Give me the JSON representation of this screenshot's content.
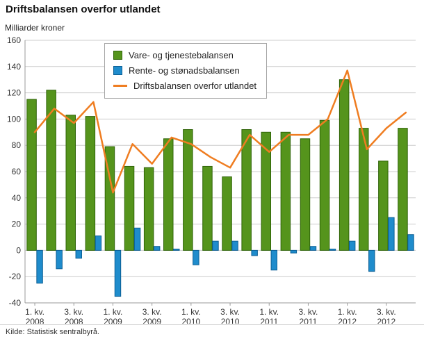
{
  "title": "Driftsbalansen overfor utlandet",
  "units_label": "Milliarder kroner",
  "footer": {
    "source": "Kilde: Statistisk sentralbyrå."
  },
  "colors": {
    "green_fill": "#55941c",
    "green_border": "#2f6407",
    "blue_fill": "#1f8ccc",
    "blue_border": "#0b5e94",
    "orange_line": "#ef7d21",
    "grid": "#cccccc",
    "axis": "#999999"
  },
  "legend": [
    {
      "label": "Vare- og tjenestebalansen",
      "type": "box",
      "color": "#55941c",
      "border": "#2f6407"
    },
    {
      "label": "Rente- og stønadsbalansen",
      "type": "box",
      "color": "#1f8ccc",
      "border": "#0b5e94"
    },
    {
      "label": "Driftsbalansen overfor utlandet",
      "type": "line",
      "color": "#ef7d21"
    }
  ],
  "chart_data": {
    "type": "bar",
    "title": "Driftsbalansen overfor utlandet",
    "ylabel": "Milliarder kroner",
    "xlabel": "",
    "ylim": [
      -40,
      160
    ],
    "yticks": [
      160,
      140,
      120,
      100,
      80,
      60,
      40,
      20,
      0,
      -20,
      -40
    ],
    "grid": true,
    "legend_position": "top-center",
    "categories": [
      "1. kv. 2008",
      "2. kv. 2008",
      "3. kv. 2008",
      "4. kv. 2008",
      "1. kv. 2009",
      "2. kv. 2009",
      "3. kv. 2009",
      "4. kv. 2009",
      "1. kv. 2010",
      "2. kv. 2010",
      "3. kv. 2010",
      "4. kv. 2010",
      "1. kv. 2011",
      "2. kv. 2011",
      "3. kv. 2011",
      "4. kv. 2011",
      "1. kv. 2012",
      "2. kv. 2012",
      "3. kv. 2012",
      "4. kv. 2012"
    ],
    "xticks": [
      {
        "index": 0,
        "line1": "1. kv.",
        "line2": "2008"
      },
      {
        "index": 2,
        "line1": "3. kv.",
        "line2": "2008"
      },
      {
        "index": 4,
        "line1": "1. kv.",
        "line2": "2009"
      },
      {
        "index": 6,
        "line1": "3. kv.",
        "line2": "2009"
      },
      {
        "index": 8,
        "line1": "1. kv.",
        "line2": "2010"
      },
      {
        "index": 10,
        "line1": "3. kv.",
        "line2": "2010"
      },
      {
        "index": 12,
        "line1": "1. kv.",
        "line2": "2011"
      },
      {
        "index": 14,
        "line1": "3. kv.",
        "line2": "2011"
      },
      {
        "index": 16,
        "line1": "1. kv.",
        "line2": "2012"
      },
      {
        "index": 18,
        "line1": "3. kv.",
        "line2": "2012"
      }
    ],
    "series": [
      {
        "name": "Vare- og tjenestebalansen",
        "type": "bar",
        "color": "#55941c",
        "border": "#2f6407",
        "values": [
          115,
          122,
          103,
          102,
          79,
          64,
          63,
          85,
          92,
          64,
          56,
          92,
          90,
          90,
          85,
          99,
          130,
          93,
          68,
          93
        ]
      },
      {
        "name": "Rente- og stønadsbalansen",
        "type": "bar",
        "color": "#1f8ccc",
        "border": "#0b5e94",
        "values": [
          -25,
          -14,
          -6,
          11,
          -35,
          17,
          3,
          1,
          -11,
          7,
          7,
          -4,
          -15,
          -2,
          3,
          1,
          7,
          -16,
          25,
          12
        ]
      },
      {
        "name": "Driftsbalansen overfor utlandet",
        "type": "line",
        "color": "#ef7d21",
        "values": [
          90,
          108,
          97,
          113,
          44,
          81,
          66,
          86,
          81,
          71,
          63,
          88,
          75,
          88,
          88,
          100,
          137,
          77,
          93,
          105
        ]
      }
    ]
  }
}
